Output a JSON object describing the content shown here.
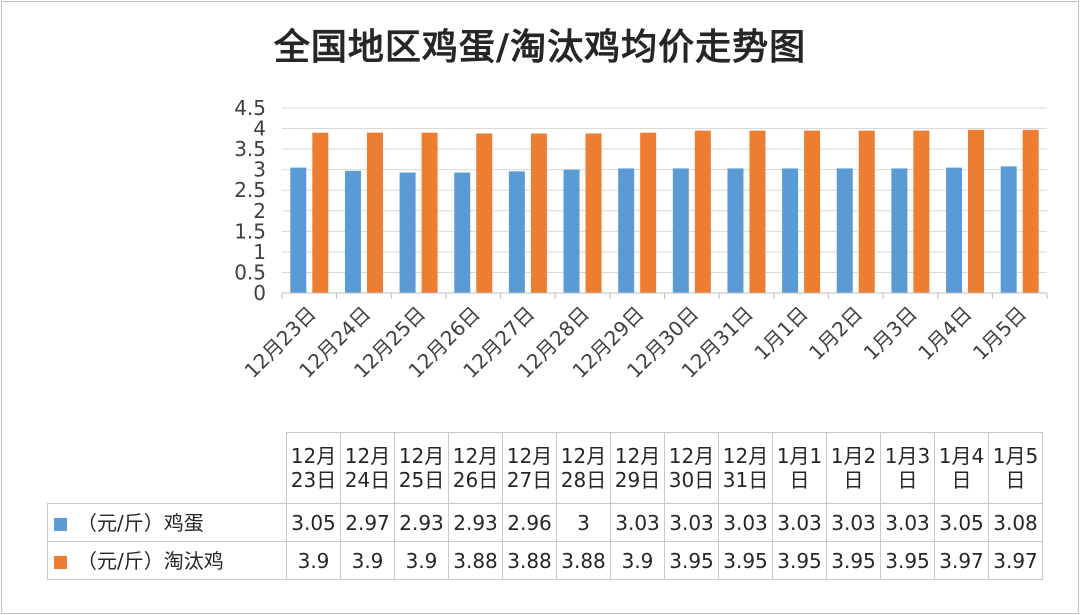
{
  "chart_data": {
    "type": "bar",
    "title": "全国地区鸡蛋/淘汰鸡均价走势图",
    "categories": [
      "12月23日",
      "12月24日",
      "12月25日",
      "12月26日",
      "12月27日",
      "12月28日",
      "12月29日",
      "12月30日",
      "12月31日",
      "1月1日",
      "1月2日",
      "1月3日",
      "1月4日",
      "1月5日"
    ],
    "table_headers": [
      "12月23日",
      "12月24日",
      "12月25日",
      "12月26日",
      "12月27日",
      "12月28日",
      "12月29日",
      "12月30日",
      "12月31日",
      "1月1日",
      "1月2日",
      "1月3日",
      "1月4日",
      "1月5日"
    ],
    "series": [
      {
        "name": "（元/斤）鸡蛋",
        "color": "#5b9bd5",
        "values": [
          3.05,
          2.97,
          2.93,
          2.93,
          2.96,
          3,
          3.03,
          3.03,
          3.03,
          3.03,
          3.03,
          3.03,
          3.05,
          3.08
        ],
        "labels": [
          "3.05",
          "2.97",
          "2.93",
          "2.93",
          "2.96",
          "3",
          "3.03",
          "3.03",
          "3.03",
          "3.03",
          "3.03",
          "3.03",
          "3.05",
          "3.08"
        ]
      },
      {
        "name": "（元/斤）淘汰鸡",
        "color": "#ed7d31",
        "values": [
          3.9,
          3.9,
          3.9,
          3.88,
          3.88,
          3.88,
          3.9,
          3.95,
          3.95,
          3.95,
          3.95,
          3.95,
          3.97,
          3.97
        ],
        "labels": [
          "3.9",
          "3.9",
          "3.9",
          "3.88",
          "3.88",
          "3.88",
          "3.9",
          "3.95",
          "3.95",
          "3.95",
          "3.95",
          "3.95",
          "3.97",
          "3.97"
        ]
      }
    ],
    "ylim": [
      0,
      4.5
    ],
    "yticks": [
      "0",
      "0.5",
      "1",
      "1.5",
      "2",
      "2.5",
      "3",
      "3.5",
      "4",
      "4.5"
    ],
    "grid": true,
    "legend": "data-table"
  }
}
